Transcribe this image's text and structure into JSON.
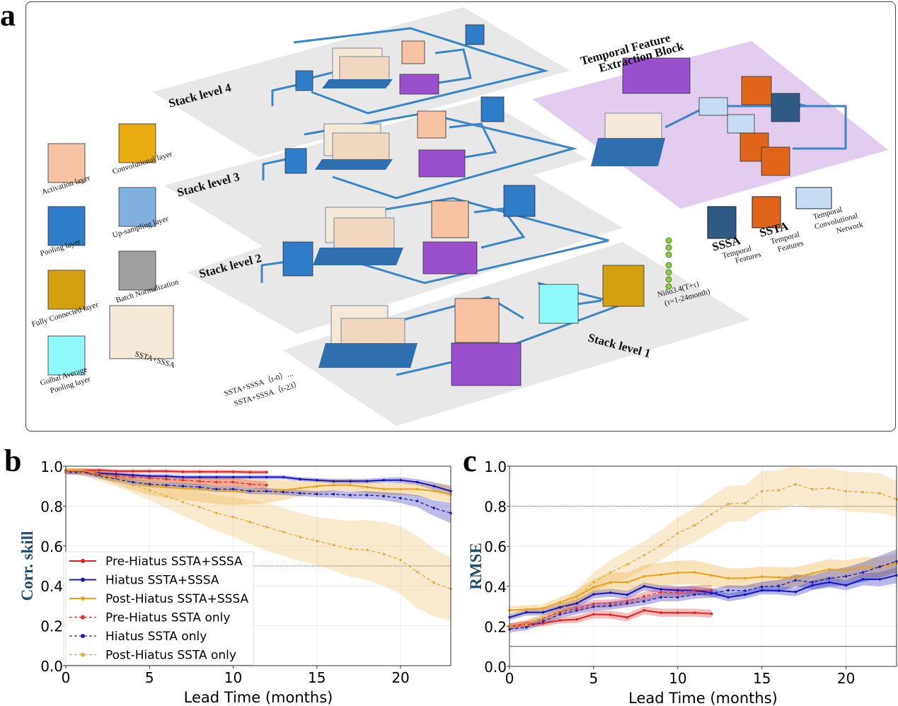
{
  "panels": {
    "a": "a",
    "b": "b",
    "c": "c"
  },
  "diagram": {
    "stack_labels": [
      "Stack level  4",
      "Stack level  3",
      "Stack level  2",
      "Stack level  1"
    ],
    "temporal_block_title": [
      "Temporal Feature",
      "Extraction Block"
    ],
    "legend": {
      "activation": "Activation layer",
      "convolutional": "Convolutional layer",
      "pooling": "Pooling layer",
      "upsampling": "Up-sampling layer",
      "fully_connected": "Fully Connected layer",
      "batch_norm": "Batch Normalization",
      "global_pool": [
        "Golbal Average",
        "Pooling layer"
      ],
      "input_map": "SSTA+SSSA"
    },
    "feature_legend": {
      "sssa": [
        "SSSA",
        "Temporal",
        "Features"
      ],
      "ssta": [
        "SSTA",
        "Temporal",
        "Features"
      ],
      "tcn": [
        "Temporal",
        "Convolutional",
        "Network"
      ]
    },
    "input_label": [
      "SSTA+SSSA（t-0）...",
      "SSTA+SSSA（t-23）"
    ],
    "output_label": [
      "Niño3.4(T+τ)",
      "(τ=1-24month)"
    ],
    "colors": {
      "plane": "#e8e8e8",
      "purple_plane": "#e3cdef",
      "arrow": "#3c86c8",
      "pooling": "#2f7cc8",
      "activation": "#f7c3a3",
      "convolutional": "#e8ac10",
      "upsampling": "#7fb0e0",
      "batch_norm": "#a0a0a0",
      "fully_connected": "#d4a010",
      "global_pool": "#8ff8fa",
      "purple_box": "#9a50cc",
      "ssta": "#e0641a",
      "sssa": "#2f5a86",
      "tcn": "#c5dcf3"
    }
  },
  "chart_data": [
    {
      "type": "line",
      "panel": "b",
      "xlabel": "Lead Time (months)",
      "ylabel": "Corr. skill",
      "xlim": [
        0,
        23
      ],
      "ylim": [
        0.0,
        1.0
      ],
      "xticks": [
        0,
        5,
        10,
        15,
        20
      ],
      "yticks": [
        "0.0",
        "0.2",
        "0.4",
        "0.6",
        "0.8",
        "1.0"
      ],
      "grid": true,
      "reference_lines": [
        {
          "y": 0.5,
          "style": "dotted"
        }
      ],
      "legend_placement": "center-left",
      "series": [
        {
          "name": "Pre-Hiatus SSTA+SSSA",
          "color": "#e02424",
          "dash": false,
          "marker": "circle",
          "values": [
            0.98,
            0.98,
            0.98,
            0.975,
            0.975,
            0.975,
            0.975,
            0.972,
            0.972,
            0.972,
            0.972,
            0.97,
            0.97
          ],
          "band": [
            0.01,
            0.01,
            0.01,
            0.01,
            0.01,
            0.01,
            0.01,
            0.01,
            0.01,
            0.01,
            0.01,
            0.01,
            0.01
          ]
        },
        {
          "name": "Hiatus SSTA+SSSA",
          "color": "#1414c0",
          "dash": false,
          "marker": "square",
          "values": [
            0.97,
            0.97,
            0.965,
            0.96,
            0.955,
            0.95,
            0.95,
            0.945,
            0.945,
            0.945,
            0.945,
            0.945,
            0.945,
            0.945,
            0.935,
            0.93,
            0.925,
            0.925,
            0.925,
            0.93,
            0.93,
            0.92,
            0.9,
            0.875
          ],
          "band": [
            0.01,
            0.01,
            0.01,
            0.01,
            0.01,
            0.01,
            0.01,
            0.01,
            0.01,
            0.01,
            0.01,
            0.01,
            0.01,
            0.01,
            0.01,
            0.01,
            0.012,
            0.012,
            0.012,
            0.012,
            0.015,
            0.015,
            0.02,
            0.025
          ]
        },
        {
          "name": "Post-Hiatus SSTA+SSSA",
          "color": "#e8a21e",
          "dash": false,
          "marker": "triangle",
          "values": [
            0.98,
            0.98,
            0.96,
            0.94,
            0.92,
            0.905,
            0.895,
            0.89,
            0.885,
            0.88,
            0.875,
            0.875,
            0.875,
            0.88,
            0.89,
            0.9,
            0.905,
            0.905,
            0.895,
            0.885,
            0.885,
            0.885,
            0.875,
            0.86
          ],
          "band": [
            0.01,
            0.01,
            0.02,
            0.03,
            0.04,
            0.05,
            0.055,
            0.06,
            0.065,
            0.07,
            0.07,
            0.065,
            0.06,
            0.05,
            0.04,
            0.035,
            0.03,
            0.03,
            0.03,
            0.03,
            0.03,
            0.035,
            0.04,
            0.045
          ]
        },
        {
          "name": "Pre-Hiatus SSTA only",
          "color": "#e03030",
          "dash": true,
          "marker": "circle",
          "values": [
            0.975,
            0.97,
            0.96,
            0.95,
            0.945,
            0.94,
            0.935,
            0.93,
            0.925,
            0.92,
            0.92,
            0.91,
            0.905
          ],
          "band": [
            0.01,
            0.01,
            0.01,
            0.012,
            0.015,
            0.015,
            0.015,
            0.018,
            0.018,
            0.02,
            0.02,
            0.02,
            0.02
          ]
        },
        {
          "name": "Hiatus SSTA only",
          "color": "#2020b0",
          "dash": true,
          "marker": "square",
          "values": [
            0.97,
            0.965,
            0.95,
            0.935,
            0.92,
            0.91,
            0.905,
            0.9,
            0.895,
            0.885,
            0.885,
            0.875,
            0.875,
            0.87,
            0.865,
            0.86,
            0.86,
            0.855,
            0.855,
            0.85,
            0.84,
            0.825,
            0.79,
            0.765
          ],
          "band": [
            0.01,
            0.01,
            0.012,
            0.015,
            0.015,
            0.015,
            0.015,
            0.015,
            0.015,
            0.015,
            0.015,
            0.015,
            0.015,
            0.015,
            0.015,
            0.015,
            0.018,
            0.018,
            0.02,
            0.02,
            0.025,
            0.03,
            0.04,
            0.05
          ]
        },
        {
          "name": "Post-Hiatus SSTA only",
          "color": "#e6b040",
          "dash": true,
          "marker": "triangle",
          "values": [
            0.97,
            0.965,
            0.945,
            0.93,
            0.905,
            0.88,
            0.85,
            0.82,
            0.795,
            0.765,
            0.745,
            0.72,
            0.695,
            0.67,
            0.645,
            0.625,
            0.605,
            0.585,
            0.58,
            0.56,
            0.53,
            0.47,
            0.415,
            0.385
          ],
          "band": [
            0.01,
            0.015,
            0.02,
            0.03,
            0.04,
            0.05,
            0.06,
            0.07,
            0.08,
            0.09,
            0.1,
            0.11,
            0.12,
            0.12,
            0.12,
            0.12,
            0.13,
            0.14,
            0.15,
            0.16,
            0.17,
            0.18,
            0.17,
            0.16
          ]
        }
      ]
    },
    {
      "type": "line",
      "panel": "c",
      "xlabel": "Lead Time (months)",
      "ylabel": "RMSE",
      "xlim": [
        0,
        23
      ],
      "ylim": [
        0.0,
        1.0
      ],
      "xticks": [
        0,
        5,
        10,
        15,
        20
      ],
      "yticks": [
        "0.0",
        "0.2",
        "0.4",
        "0.6",
        "0.8",
        "1.0"
      ],
      "grid": true,
      "reference_lines": [
        {
          "y": 0.8,
          "style": "dotted"
        },
        {
          "y": 0.1,
          "style": "solid"
        }
      ],
      "series": [
        {
          "name": "Pre-Hiatus SSTA+SSSA",
          "color": "#e02424",
          "dash": false,
          "marker": "circle",
          "values": [
            0.2,
            0.21,
            0.215,
            0.23,
            0.235,
            0.26,
            0.258,
            0.245,
            0.28,
            0.268,
            0.268,
            0.268,
            0.263
          ],
          "band": [
            0.015,
            0.015,
            0.015,
            0.015,
            0.018,
            0.02,
            0.02,
            0.02,
            0.02,
            0.02,
            0.02,
            0.02,
            0.02
          ]
        },
        {
          "name": "Hiatus SSTA+SSSA",
          "color": "#1414c0",
          "dash": false,
          "marker": "square",
          "values": [
            0.245,
            0.27,
            0.27,
            0.295,
            0.315,
            0.36,
            0.368,
            0.358,
            0.4,
            0.385,
            0.38,
            0.38,
            0.368,
            0.345,
            0.358,
            0.38,
            0.378,
            0.372,
            0.405,
            0.42,
            0.405,
            0.435,
            0.435,
            0.455
          ],
          "band": [
            0.015,
            0.015,
            0.015,
            0.018,
            0.02,
            0.02,
            0.02,
            0.02,
            0.02,
            0.02,
            0.02,
            0.02,
            0.02,
            0.02,
            0.02,
            0.02,
            0.02,
            0.022,
            0.025,
            0.025,
            0.025,
            0.03,
            0.035,
            0.04
          ]
        },
        {
          "name": "Post-Hiatus SSTA+SSSA",
          "color": "#e8a21e",
          "dash": false,
          "marker": "triangle",
          "values": [
            0.28,
            0.285,
            0.29,
            0.32,
            0.35,
            0.395,
            0.42,
            0.42,
            0.45,
            0.458,
            0.468,
            0.47,
            0.455,
            0.44,
            0.44,
            0.448,
            0.445,
            0.445,
            0.465,
            0.485,
            0.48,
            0.495,
            0.495,
            0.515
          ],
          "band": [
            0.02,
            0.02,
            0.02,
            0.025,
            0.03,
            0.04,
            0.05,
            0.05,
            0.055,
            0.06,
            0.06,
            0.06,
            0.055,
            0.05,
            0.05,
            0.05,
            0.05,
            0.05,
            0.05,
            0.05,
            0.05,
            0.05,
            0.05,
            0.05
          ]
        },
        {
          "name": "Pre-Hiatus SSTA only",
          "color": "#e03030",
          "dash": true,
          "marker": "circle",
          "values": [
            0.2,
            0.215,
            0.24,
            0.272,
            0.29,
            0.312,
            0.315,
            0.325,
            0.35,
            0.37,
            0.37,
            0.38,
            0.382
          ],
          "band": [
            0.015,
            0.015,
            0.015,
            0.018,
            0.02,
            0.02,
            0.02,
            0.02,
            0.022,
            0.025,
            0.025,
            0.025,
            0.025
          ]
        },
        {
          "name": "Hiatus SSTA only",
          "color": "#2020b0",
          "dash": true,
          "marker": "square",
          "values": [
            0.185,
            0.195,
            0.225,
            0.26,
            0.28,
            0.298,
            0.303,
            0.315,
            0.325,
            0.345,
            0.345,
            0.358,
            0.365,
            0.38,
            0.378,
            0.398,
            0.402,
            0.43,
            0.42,
            0.44,
            0.45,
            0.47,
            0.498,
            0.525
          ],
          "band": [
            0.015,
            0.015,
            0.015,
            0.018,
            0.02,
            0.02,
            0.02,
            0.02,
            0.02,
            0.02,
            0.02,
            0.02,
            0.022,
            0.025,
            0.025,
            0.025,
            0.03,
            0.03,
            0.035,
            0.04,
            0.045,
            0.05,
            0.055,
            0.06
          ]
        },
        {
          "name": "Post-Hiatus SSTA only",
          "color": "#e6b040",
          "dash": true,
          "marker": "triangle",
          "values": [
            0.2,
            0.21,
            0.245,
            0.28,
            0.345,
            0.42,
            0.47,
            0.51,
            0.555,
            0.605,
            0.665,
            0.705,
            0.76,
            0.812,
            0.815,
            0.875,
            0.88,
            0.91,
            0.885,
            0.89,
            0.875,
            0.87,
            0.865,
            0.835
          ],
          "band": [
            0.015,
            0.02,
            0.025,
            0.03,
            0.04,
            0.05,
            0.06,
            0.07,
            0.07,
            0.075,
            0.08,
            0.085,
            0.09,
            0.09,
            0.09,
            0.1,
            0.1,
            0.1,
            0.1,
            0.1,
            0.1,
            0.1,
            0.1,
            0.09
          ]
        }
      ]
    }
  ]
}
